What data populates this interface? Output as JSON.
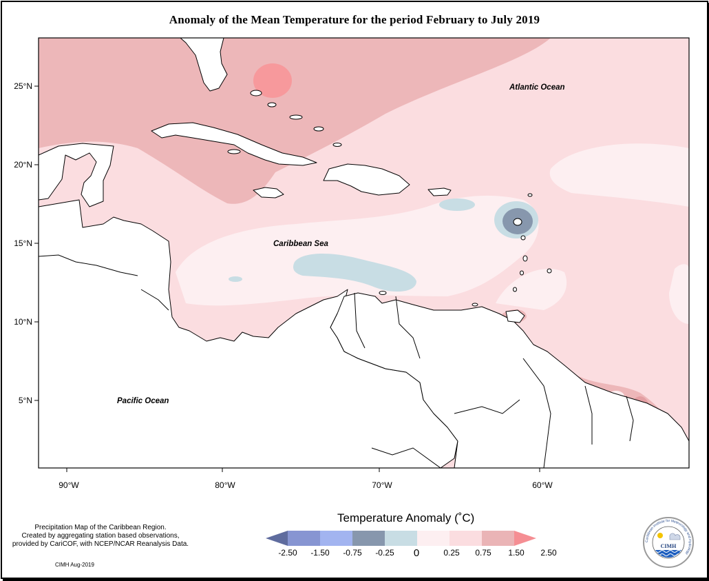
{
  "title": "Anomaly of the Mean Temperature for the period February to July 2019",
  "map": {
    "lon_ticks": [
      "90°W",
      "80°W",
      "70°W",
      "60°W"
    ],
    "lat_ticks": [
      "25°N",
      "20°N",
      "15°N",
      "10°N",
      "5°N"
    ],
    "labels": {
      "atlantic": "Atlantic Ocean",
      "caribbean": "Caribbean Sea",
      "pacific": "Pacific Ocean"
    }
  },
  "legend": {
    "title": "Temperature Anomaly (˚C)",
    "bins": [
      {
        "color": "#5f6c9e"
      },
      {
        "color": "#8795d2"
      },
      {
        "color": "#a2b4f0"
      },
      {
        "color": "#8797ad"
      },
      {
        "color": "#c8dde4"
      },
      {
        "color": "#fdeff1"
      },
      {
        "color": "#fbdde0"
      },
      {
        "color": "#eab4b6"
      },
      {
        "color": "#f58e93"
      }
    ],
    "tick_labels": [
      "-2.50",
      "-1.50",
      "-0.75",
      "-0.25",
      "0",
      "0.25",
      "0.75",
      "1.50",
      "2.50"
    ]
  },
  "credits": {
    "line1": "Precipitation Map of the Caribbean Region.",
    "line2": "Created by aggregating station based observations,",
    "line3": "provided by CariCOF, with NCEP/NCAR Reanalysis Data.",
    "date": "CIMH Aug-2019"
  },
  "logo": {
    "ring_text": "Caribbean Institute for Meteorology and Hydrology",
    "abbr": "CIMH"
  }
}
